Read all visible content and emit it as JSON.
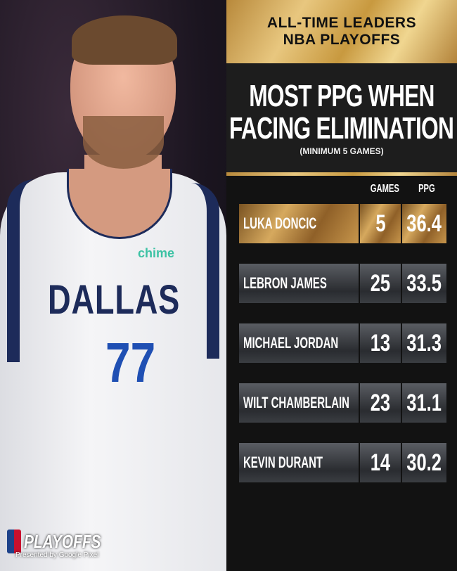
{
  "header": {
    "line1": "ALL-TIME LEADERS",
    "line2": "NBA PLAYOFFS"
  },
  "title": {
    "line1": "MOST PPG WHEN",
    "line2": "FACING ELIMINATION",
    "subtitle": "(MINIMUM 5 GAMES)"
  },
  "columns": {
    "games": "GAMES",
    "ppg": "PPG"
  },
  "rows": [
    {
      "name": "LUKA DONCIC",
      "games": "5",
      "ppg": "36.4"
    },
    {
      "name": "LEBRON JAMES",
      "games": "25",
      "ppg": "33.5"
    },
    {
      "name": "MICHAEL JORDAN",
      "games": "13",
      "ppg": "31.3"
    },
    {
      "name": "WILT CHAMBERLAIN",
      "games": "23",
      "ppg": "31.1"
    },
    {
      "name": "KEVIN DURANT",
      "games": "14",
      "ppg": "30.2"
    }
  ],
  "photo": {
    "jersey_text": "DALLAS",
    "jersey_number": "77",
    "sponsor": "chime"
  },
  "branding": {
    "logo_text": "PLAYOFFS",
    "presented_by": "Presented by Google Pixel"
  },
  "colors": {
    "gold": "#d6a95e",
    "panel": "#121212",
    "navy": "#1d2b5a"
  }
}
